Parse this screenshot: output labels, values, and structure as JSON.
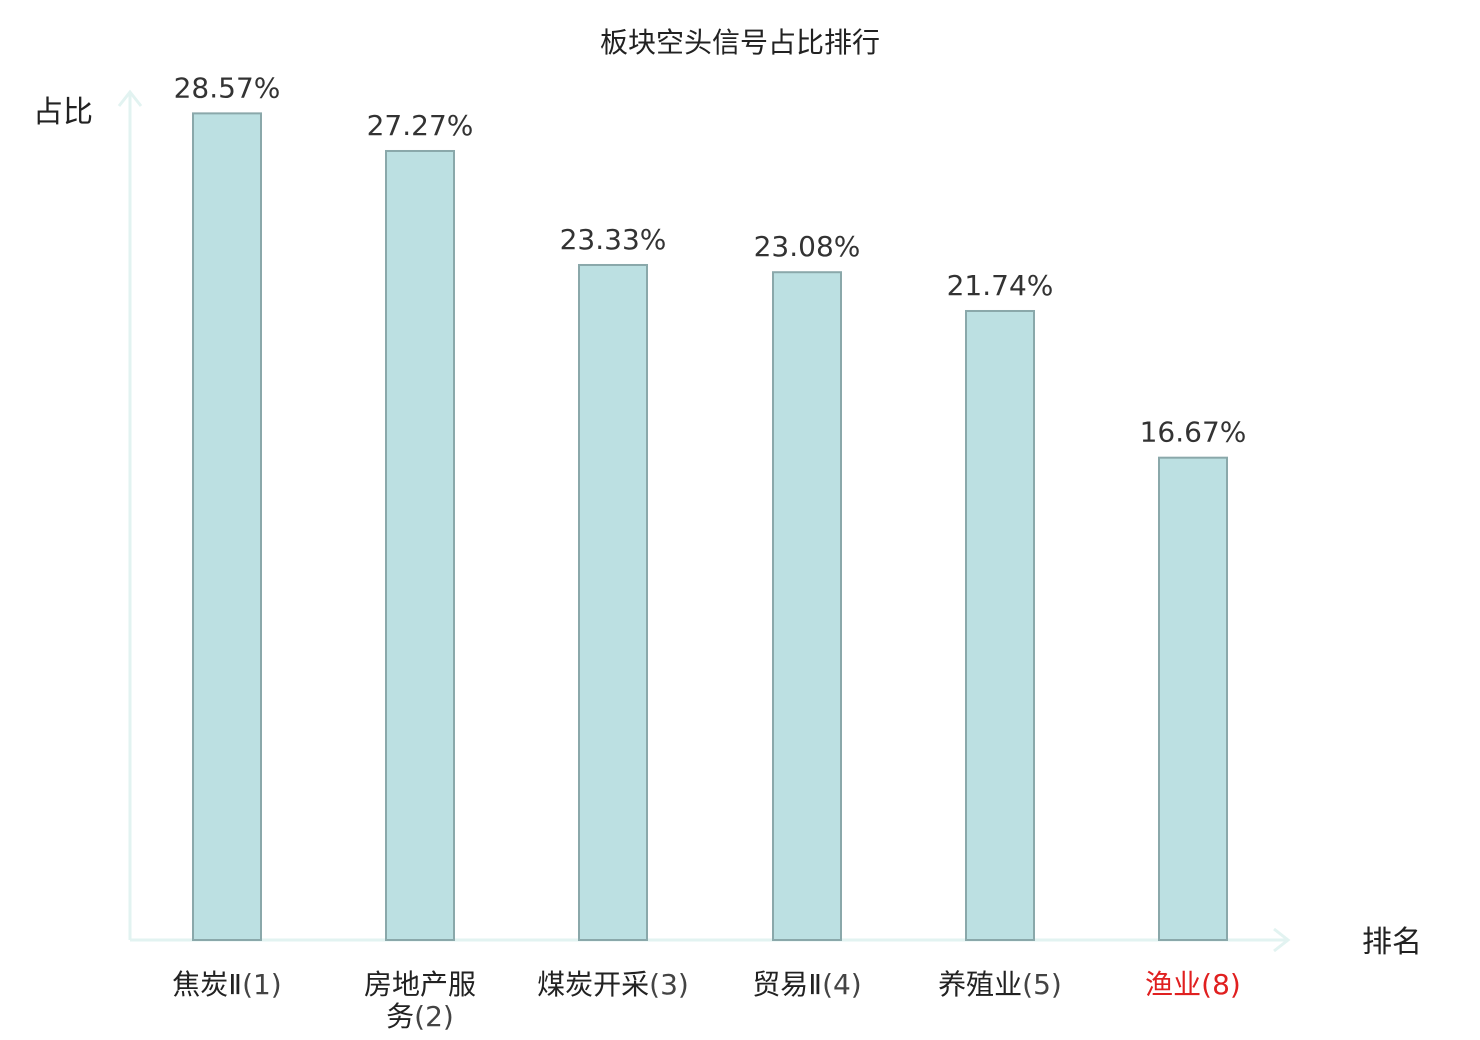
{
  "chart_data": {
    "type": "bar",
    "title": "板块空头信号占比排行",
    "ylabel": "占比",
    "xlabel": "排名",
    "ylim": [
      0,
      30
    ],
    "grid": false,
    "legend": "none",
    "categories": [
      {
        "name_lines": [
          "焦炭Ⅱ"
        ],
        "rank": "(1)",
        "highlight": false
      },
      {
        "name_lines": [
          "房地产服",
          "务"
        ],
        "rank": "(2)",
        "highlight": false
      },
      {
        "name_lines": [
          "煤炭开采"
        ],
        "rank": "(3)",
        "highlight": false
      },
      {
        "name_lines": [
          "贸易Ⅱ"
        ],
        "rank": "(4)",
        "highlight": false
      },
      {
        "name_lines": [
          "养殖业"
        ],
        "rank": "(5)",
        "highlight": false
      },
      {
        "name_lines": [
          "渔业"
        ],
        "rank": "(8)",
        "highlight": true
      }
    ],
    "values": [
      28.57,
      27.27,
      23.33,
      23.08,
      21.74,
      16.67
    ],
    "value_labels": [
      "28.57%",
      "27.27%",
      "23.33%",
      "23.08%",
      "21.74%",
      "16.67%"
    ],
    "colors": {
      "bar_fill": "#bce0e2",
      "bar_stroke": "#8aa8aa",
      "axis": "#e2f3f1",
      "label_text": "#333333",
      "rank_text": "#444444",
      "highlight_text": "#e02020"
    }
  }
}
